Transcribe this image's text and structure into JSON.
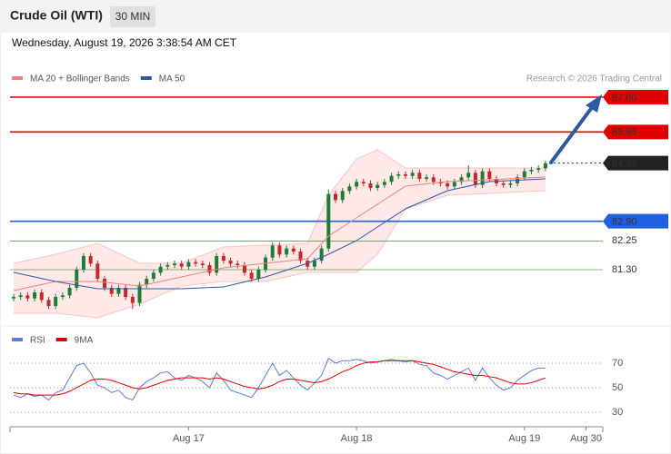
{
  "header": {
    "title": "Crude Oil (WTI)",
    "interval": "30 MIN",
    "date": "Wednesday, August 19, 2026 3:38:54 AM CET"
  },
  "chart_data": [
    {
      "type": "candlestick",
      "copyright": "Research © 2026 Trading Central",
      "xlim": [
        -0.52,
        84.2
      ],
      "ylim": [
        79.56,
        88.41
      ],
      "up_color": "#1e7b34",
      "down_color": "#c62828",
      "open": [
        80.35,
        80.4,
        80.45,
        80.35,
        80.55,
        80.3,
        80.1,
        80.4,
        80.45,
        80.7,
        81.3,
        81.75,
        81.5,
        81.0,
        80.7,
        80.5,
        80.7,
        80.4,
        80.2,
        80.8,
        81.0,
        81.2,
        81.4,
        81.45,
        81.5,
        81.4,
        81.55,
        81.5,
        81.45,
        81.2,
        81.75,
        81.6,
        81.5,
        81.45,
        81.2,
        81.0,
        81.3,
        81.7,
        82.1,
        81.8,
        82.0,
        81.9,
        81.6,
        81.4,
        81.6,
        82.0,
        83.8,
        83.6,
        83.9,
        84.05,
        84.2,
        84.15,
        84.0,
        84.1,
        84.2,
        84.4,
        84.45,
        84.4,
        84.5,
        84.3,
        84.35,
        84.2,
        84.15,
        84.05,
        84.2,
        84.35,
        84.5,
        84.1,
        84.55,
        84.3,
        84.15,
        84.1,
        84.15,
        84.35,
        84.55,
        84.6,
        84.65
      ],
      "high": [
        80.5,
        80.55,
        80.55,
        80.65,
        80.65,
        80.4,
        80.5,
        80.55,
        80.8,
        81.4,
        81.85,
        81.85,
        81.6,
        81.1,
        80.8,
        80.8,
        80.8,
        80.5,
        80.9,
        81.1,
        81.3,
        81.5,
        81.55,
        81.6,
        81.6,
        81.65,
        81.65,
        81.6,
        81.55,
        81.85,
        81.85,
        81.7,
        81.6,
        81.55,
        81.3,
        81.4,
        81.8,
        82.2,
        82.2,
        82.1,
        82.1,
        82.0,
        81.7,
        81.7,
        82.1,
        83.95,
        83.9,
        84.0,
        84.15,
        84.3,
        84.3,
        84.25,
        84.2,
        84.3,
        84.5,
        84.55,
        84.55,
        84.6,
        84.6,
        84.45,
        84.45,
        84.3,
        84.25,
        84.3,
        84.45,
        84.75,
        84.6,
        84.65,
        84.65,
        84.4,
        84.25,
        84.25,
        84.45,
        84.65,
        84.7,
        84.75,
        84.9
      ],
      "low": [
        80.25,
        80.3,
        80.25,
        80.25,
        80.2,
        80.0,
        80.0,
        80.3,
        80.35,
        80.6,
        81.2,
        81.4,
        80.9,
        80.6,
        80.4,
        80.4,
        80.3,
        80.0,
        80.1,
        80.7,
        80.9,
        81.1,
        81.3,
        81.35,
        81.3,
        81.3,
        81.4,
        81.35,
        81.1,
        81.1,
        81.5,
        81.4,
        81.35,
        81.1,
        80.9,
        80.9,
        81.2,
        81.6,
        81.7,
        81.7,
        81.8,
        81.5,
        81.3,
        81.3,
        81.5,
        81.9,
        83.5,
        83.5,
        83.8,
        83.95,
        84.05,
        83.9,
        83.9,
        84.0,
        84.1,
        84.3,
        84.3,
        84.3,
        84.2,
        84.2,
        84.1,
        84.05,
        83.95,
        83.95,
        84.1,
        84.25,
        84.0,
        84.0,
        84.2,
        84.05,
        84.0,
        84.0,
        84.05,
        84.25,
        84.45,
        84.5,
        84.55
      ],
      "close": [
        80.4,
        80.45,
        80.35,
        80.55,
        80.3,
        80.1,
        80.4,
        80.45,
        80.7,
        81.3,
        81.75,
        81.5,
        81.0,
        80.7,
        80.5,
        80.7,
        80.4,
        80.2,
        80.8,
        81.0,
        81.2,
        81.4,
        81.45,
        81.5,
        81.4,
        81.55,
        81.5,
        81.45,
        81.2,
        81.75,
        81.6,
        81.5,
        81.45,
        81.2,
        81.0,
        81.3,
        81.7,
        82.1,
        81.8,
        82.0,
        81.9,
        81.6,
        81.4,
        81.6,
        82.0,
        83.8,
        83.6,
        83.9,
        84.05,
        84.2,
        84.15,
        84.0,
        84.1,
        84.2,
        84.4,
        84.45,
        84.4,
        84.5,
        84.3,
        84.35,
        84.2,
        84.15,
        84.05,
        84.2,
        84.35,
        84.5,
        84.1,
        84.55,
        84.3,
        84.15,
        84.1,
        84.15,
        84.35,
        84.55,
        84.6,
        84.65,
        84.82
      ],
      "series": [
        {
          "name": "MA 20 + Bollinger Bands",
          "color": "#f08080",
          "x": [
            0,
            6,
            12,
            18,
            24,
            30,
            36,
            42,
            45,
            49,
            52,
            56,
            62,
            68,
            76
          ],
          "values": [
            80.61,
            80.91,
            80.91,
            80.76,
            81.06,
            81.36,
            81.51,
            81.66,
            82.41,
            83.01,
            83.46,
            84.06,
            84.21,
            84.27,
            84.36
          ],
          "upper": [
            81.51,
            81.81,
            82.17,
            81.51,
            81.51,
            82.05,
            82.11,
            82.17,
            83.76,
            84.96,
            85.26,
            84.66,
            84.66,
            84.66,
            84.66
          ],
          "lower": [
            79.86,
            79.86,
            79.71,
            80.16,
            80.76,
            80.91,
            80.91,
            81.21,
            81.21,
            81.21,
            81.81,
            83.31,
            83.76,
            83.82,
            83.91
          ]
        },
        {
          "name": "MA 50",
          "color": "#2c5aa0",
          "x": [
            0,
            6,
            12,
            18,
            24,
            30,
            36,
            42,
            45,
            49,
            52,
            56,
            62,
            68,
            76
          ],
          "values": [
            81.21,
            80.91,
            80.67,
            80.67,
            80.67,
            80.73,
            81.06,
            81.51,
            81.81,
            82.26,
            82.71,
            83.31,
            83.91,
            84.21,
            84.3
          ]
        }
      ],
      "levels": [
        {
          "value": 87,
          "label": "87.00",
          "color": "#e00000",
          "boxed": true,
          "dotted": false
        },
        {
          "value": 85.85,
          "label": "85.85",
          "color": "#e00000",
          "boxed": true,
          "dotted": false
        },
        {
          "value": 84.82,
          "label": "84.82",
          "color": "#222222",
          "boxed": true,
          "dotted": true
        },
        {
          "value": 82.9,
          "label": "82.90",
          "color": "#1f5fe0",
          "boxed": true,
          "dotted": false
        },
        {
          "value": 82.25,
          "label": "82.25",
          "color": "#1a7a1a",
          "boxed": false,
          "dotted": false
        },
        {
          "value": 81.3,
          "label": "81.30",
          "color": "#1a7a1a",
          "boxed": false,
          "dotted": false
        }
      ]
    },
    {
      "type": "line",
      "xlim": [
        -0.52,
        84.2
      ],
      "ylim": [
        21.85,
        98.1
      ],
      "yticks": [
        70,
        50,
        30
      ],
      "xticks": [
        {
          "value": 25,
          "label": "Aug 17"
        },
        {
          "value": 49,
          "label": "Aug 18"
        },
        {
          "value": 73,
          "label": "Aug 19"
        },
        {
          "value": 81.8,
          "label": "Aug 30"
        }
      ],
      "series": [
        {
          "name": "RSI",
          "color": "#5b7fd6",
          "values": [
            44,
            42,
            45,
            43,
            44,
            40,
            46,
            48,
            58,
            68,
            70,
            62,
            52,
            50,
            46,
            48,
            42,
            40,
            50,
            55,
            58,
            62,
            63,
            58,
            56,
            60,
            58,
            55,
            50,
            62,
            56,
            48,
            46,
            44,
            42,
            50,
            60,
            70,
            60,
            64,
            58,
            52,
            48,
            54,
            60,
            74,
            70,
            72,
            72,
            73,
            72,
            70,
            71,
            72,
            73,
            72,
            71,
            72,
            69,
            68,
            62,
            60,
            57,
            60,
            63,
            66,
            56,
            66,
            58,
            52,
            48,
            50,
            56,
            60,
            64,
            66,
            66
          ]
        },
        {
          "name": "9MA",
          "color": "#e00000",
          "values": [
            46,
            45,
            45,
            44,
            44,
            44,
            44,
            45,
            47,
            50,
            53,
            56,
            57,
            57,
            56,
            54,
            52,
            50,
            49,
            50,
            52,
            54,
            56,
            57,
            58,
            58,
            58,
            58,
            57,
            58,
            57,
            55,
            53,
            51,
            50,
            49,
            50,
            52,
            55,
            57,
            57,
            56,
            55,
            54,
            55,
            57,
            60,
            63,
            65,
            68,
            70,
            71,
            71,
            72,
            72,
            72,
            72,
            72,
            71,
            70,
            69,
            67,
            65,
            63,
            62,
            61,
            60,
            60,
            59,
            58,
            56,
            54,
            53,
            53,
            54,
            56,
            58
          ]
        }
      ]
    }
  ]
}
